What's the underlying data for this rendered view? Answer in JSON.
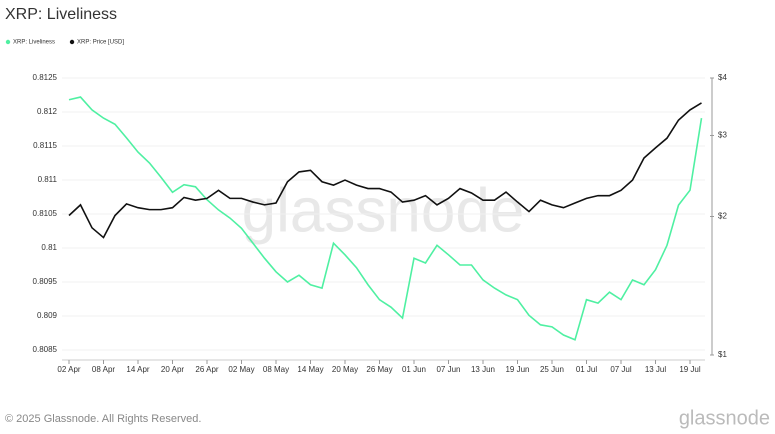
{
  "chart_data": {
    "type": "line",
    "title": "XRP: Liveliness",
    "categories": [
      "02 Apr",
      null,
      null,
      "08 Apr",
      null,
      null,
      "14 Apr",
      null,
      null,
      "20 Apr",
      null,
      null,
      "26 Apr",
      null,
      null,
      "02 May",
      null,
      null,
      "08 May",
      null,
      null,
      "14 May",
      null,
      null,
      "20 May",
      null,
      null,
      "26 May",
      null,
      null,
      "01 Jun",
      null,
      null,
      "07 Jun",
      null,
      null,
      "13 Jun",
      null,
      null,
      "19 Jun",
      null,
      null,
      "25 Jun",
      null,
      null,
      "01 Jul",
      null,
      null,
      "07 Jul",
      null,
      null,
      "13 Jul",
      null,
      null,
      "19 Jul",
      null
    ],
    "series": [
      {
        "name": "XRP: Liveliness",
        "color": "#4ff0a2",
        "axis": "y",
        "values": [
          0.81218,
          0.81222,
          0.81203,
          0.81191,
          0.81182,
          0.81162,
          0.81141,
          0.81125,
          0.81104,
          0.81082,
          0.81093,
          0.8109,
          0.81071,
          0.81056,
          0.81044,
          0.81029,
          0.81007,
          0.80985,
          0.80965,
          0.8095,
          0.8096,
          0.80946,
          0.80941,
          0.81007,
          0.8099,
          0.80971,
          0.80946,
          0.80924,
          0.80913,
          0.80897,
          0.80985,
          0.80978,
          0.81004,
          0.8099,
          0.80975,
          0.80975,
          0.80953,
          0.80941,
          0.80931,
          0.80924,
          0.80901,
          0.80887,
          0.80884,
          0.80872,
          0.80865,
          0.80924,
          0.80919,
          0.80935,
          0.80924,
          0.80953,
          0.80946,
          0.80968,
          0.81004,
          0.81063,
          0.81085,
          0.81191
        ]
      },
      {
        "name": "XRP: Price [USD]",
        "color": "#111111",
        "axis": "y2",
        "values": [
          2.01,
          2.12,
          1.89,
          1.8,
          2.01,
          2.13,
          2.09,
          2.07,
          2.07,
          2.09,
          2.2,
          2.17,
          2.19,
          2.28,
          2.19,
          2.19,
          2.15,
          2.12,
          2.14,
          2.38,
          2.5,
          2.52,
          2.38,
          2.34,
          2.4,
          2.34,
          2.3,
          2.3,
          2.26,
          2.15,
          2.17,
          2.22,
          2.12,
          2.19,
          2.3,
          2.25,
          2.17,
          2.17,
          2.26,
          2.15,
          2.05,
          2.17,
          2.12,
          2.09,
          2.14,
          2.19,
          2.22,
          2.22,
          2.28,
          2.4,
          2.68,
          2.82,
          2.96,
          3.24,
          3.41,
          3.53
        ]
      }
    ],
    "ylim": [
      0.8085,
      0.8125
    ],
    "yticks": [
      0.8085,
      0.809,
      0.8095,
      0.81,
      0.8105,
      0.811,
      0.8115,
      0.812,
      0.8125
    ],
    "y2lim": [
      1,
      4
    ],
    "y2scale": "log",
    "y2ticks": [
      {
        "value": 1,
        "label": "$1"
      },
      {
        "value": 2,
        "label": "$2"
      },
      {
        "value": 3,
        "label": "$3"
      },
      {
        "value": 4,
        "label": "$4"
      }
    ],
    "grid": true
  },
  "watermark": "glassnode",
  "footer": "© 2025 Glassnode. All Rights Reserved.",
  "logo": "glassnode"
}
